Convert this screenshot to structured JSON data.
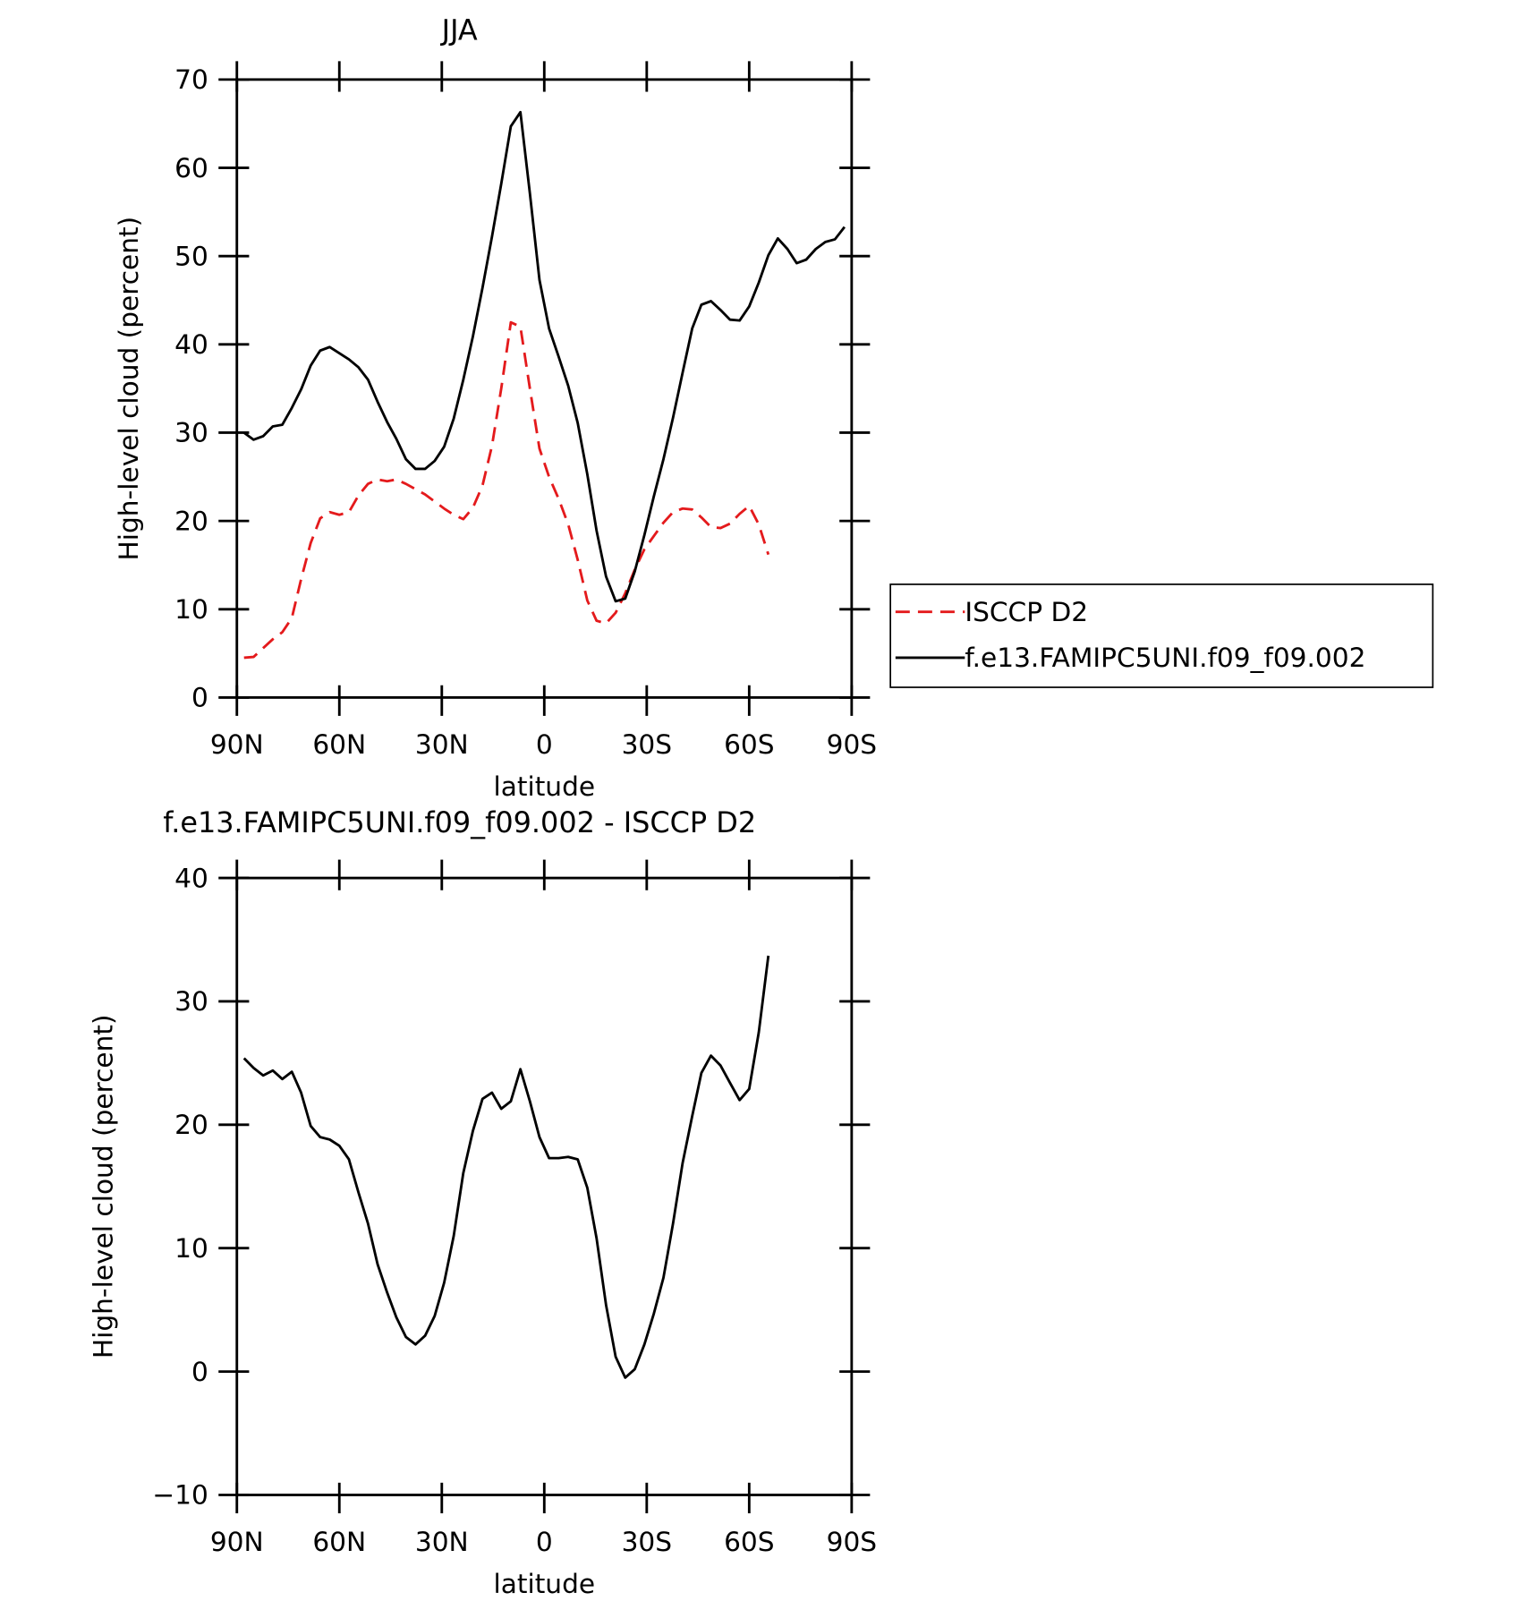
{
  "chart_data": [
    {
      "type": "line",
      "title": "JJA",
      "xlabel": "latitude",
      "ylabel": "High-level cloud (percent)",
      "x": [
        87.9,
        85.1,
        82.3,
        79.5,
        76.7,
        73.9,
        71.2,
        68.4,
        65.6,
        62.8,
        60.0,
        57.2,
        54.4,
        51.6,
        48.8,
        46.0,
        43.3,
        40.5,
        37.7,
        34.9,
        32.1,
        29.3,
        26.5,
        23.7,
        20.9,
        18.1,
        15.3,
        12.6,
        9.8,
        7.0,
        4.2,
        1.4,
        -1.4,
        -4.2,
        -7.0,
        -9.8,
        -12.6,
        -15.3,
        -18.1,
        -20.9,
        -23.7,
        -26.5,
        -29.3,
        -32.1,
        -34.9,
        -37.7,
        -40.5,
        -43.3,
        -46.0,
        -48.8,
        -51.6,
        -54.4,
        -57.2,
        -60.0,
        -62.8,
        -65.6,
        -68.4,
        -71.2,
        -73.9,
        -76.7,
        -79.5,
        -82.3,
        -85.1,
        -87.9
      ],
      "series": [
        {
          "name": "ISCCP D2",
          "color": "#e41a1c",
          "line_style": "dashed",
          "values": [
            4.5,
            4.6,
            5.6,
            6.6,
            7.4,
            9.0,
            13.4,
            17.5,
            20.3,
            21.0,
            20.7,
            21.0,
            22.9,
            24.2,
            24.7,
            24.5,
            24.7,
            24.2,
            23.6,
            23.0,
            22.2,
            21.4,
            20.7,
            20.2,
            21.5,
            24.0,
            28.5,
            35.0,
            42.5,
            42.0,
            35.0,
            28.2,
            25.0,
            22.5,
            19.6,
            15.6,
            11.0,
            8.7,
            8.4,
            9.6,
            11.8,
            14.5,
            16.8,
            18.3,
            19.8,
            21.0,
            21.4,
            21.3,
            20.4,
            19.3,
            19.2,
            19.7,
            20.8,
            21.7,
            19.6,
            16.2,
            null,
            null,
            null,
            null,
            null,
            null,
            null,
            null
          ]
        },
        {
          "name": "f.e13.FAMIPC5UNI.f09_f09.002",
          "color": "#000000",
          "line_style": "solid",
          "values": [
            30.0,
            29.2,
            29.6,
            30.7,
            30.9,
            32.8,
            34.9,
            37.6,
            39.3,
            39.7,
            39.0,
            38.3,
            37.4,
            36.0,
            33.5,
            31.2,
            29.3,
            27.0,
            25.9,
            25.9,
            26.8,
            28.4,
            31.6,
            36.0,
            40.9,
            46.4,
            52.2,
            58.2,
            64.7,
            66.3,
            57.1,
            47.3,
            41.8,
            38.6,
            35.3,
            31.1,
            25.3,
            18.9,
            13.7,
            10.9,
            11.2,
            14.3,
            18.4,
            22.8,
            27.0,
            31.7,
            36.8,
            41.8,
            44.5,
            44.9,
            43.9,
            42.8,
            42.7,
            44.3,
            47.0,
            50.1,
            52.0,
            50.8,
            49.2,
            49.6,
            50.8,
            51.6,
            51.9,
            53.3
          ]
        }
      ],
      "xlim": [
        90,
        -90
      ],
      "xticks": [
        {
          "value": 90,
          "label": "90N"
        },
        {
          "value": 60,
          "label": "60N"
        },
        {
          "value": 30,
          "label": "30N"
        },
        0,
        {
          "value": -30,
          "label": "30S"
        },
        {
          "value": -60,
          "label": "60S"
        },
        {
          "value": -90,
          "label": "90S"
        }
      ],
      "ylim": [
        0,
        70
      ],
      "yticks": [
        0,
        10,
        20,
        30,
        40,
        50,
        60,
        70
      ],
      "legend": "right"
    },
    {
      "type": "line",
      "title": "f.e13.FAMIPC5UNI.f09_f09.002 - ISCCP D2",
      "xlabel": "latitude",
      "ylabel": "High-level cloud (percent)",
      "x": [
        87.9,
        85.1,
        82.3,
        79.5,
        76.7,
        73.9,
        71.2,
        68.4,
        65.6,
        62.8,
        60.0,
        57.2,
        54.4,
        51.6,
        48.8,
        46.0,
        43.3,
        40.5,
        37.7,
        34.9,
        32.1,
        29.3,
        26.5,
        23.7,
        20.9,
        18.1,
        15.3,
        12.6,
        9.8,
        7.0,
        4.2,
        1.4,
        -1.4,
        -4.2,
        -7.0,
        -9.8,
        -12.6,
        -15.3,
        -18.1,
        -20.9,
        -23.7,
        -26.5,
        -29.3,
        -32.1,
        -34.9,
        -37.7,
        -40.5,
        -43.3,
        -46.0,
        -48.8,
        -51.6,
        -54.4,
        -57.2,
        -60.0,
        -62.8,
        -65.6,
        -68.4,
        -71.2,
        -73.9,
        -76.7,
        -79.5,
        -82.3,
        -85.1,
        -87.9
      ],
      "series": [
        {
          "color": "#000000",
          "line_style": "solid",
          "values": [
            25.4,
            24.6,
            24.0,
            24.4,
            23.7,
            24.3,
            22.6,
            19.9,
            19.0,
            18.8,
            18.3,
            17.2,
            14.5,
            12.0,
            8.7,
            6.4,
            4.4,
            2.8,
            2.2,
            2.9,
            4.5,
            7.2,
            11.0,
            16.1,
            19.5,
            22.1,
            22.6,
            21.3,
            21.9,
            24.5,
            21.9,
            19.0,
            17.3,
            17.3,
            17.4,
            17.2,
            14.9,
            10.8,
            5.4,
            1.2,
            -0.5,
            0.2,
            2.2,
            4.7,
            7.6,
            12.0,
            16.9,
            20.7,
            24.2,
            25.6,
            24.8,
            23.4,
            22.0,
            22.9,
            27.5,
            33.7,
            null,
            null,
            null,
            null,
            null,
            null,
            null,
            null
          ]
        }
      ],
      "xlim": [
        90,
        -90
      ],
      "xticks": [
        {
          "value": 90,
          "label": "90N"
        },
        {
          "value": 60,
          "label": "60N"
        },
        {
          "value": 30,
          "label": "30N"
        },
        0,
        {
          "value": -30,
          "label": "30S"
        },
        {
          "value": -60,
          "label": "60S"
        },
        {
          "value": -90,
          "label": "90S"
        }
      ],
      "ylim": [
        -10,
        40
      ],
      "yticks": [
        {
          "value": -10,
          "label": "−10"
        },
        0,
        10,
        20,
        30,
        40
      ]
    }
  ]
}
